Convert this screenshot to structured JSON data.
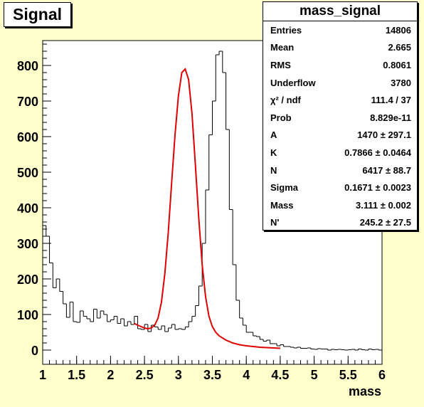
{
  "chart_data": {
    "type": "line",
    "title": "Signal",
    "xlabel": "mass",
    "ylabel": "",
    "xlim": [
      1,
      6
    ],
    "ylim": [
      -40,
      870
    ],
    "x_ticks": [
      "1",
      "1.5",
      "2",
      "2.5",
      "3",
      "3.5",
      "4",
      "4.5",
      "5",
      "5.5",
      "6"
    ],
    "y_ticks": [
      "0",
      "100",
      "200",
      "300",
      "400",
      "500",
      "600",
      "700",
      "800"
    ],
    "histogram": {
      "name": "mass_signal",
      "bin_width": 0.05,
      "x_start": 1.0,
      "values": [
        350,
        320,
        245,
        175,
        200,
        165,
        130,
        92,
        135,
        80,
        78,
        110,
        95,
        88,
        80,
        115,
        90,
        110,
        100,
        80,
        85,
        95,
        75,
        88,
        68,
        80,
        72,
        95,
        60,
        58,
        72,
        52,
        70,
        65,
        58,
        68,
        52,
        62,
        72,
        58,
        60,
        58,
        65,
        80,
        95,
        125,
        180,
        300,
        450,
        605,
        700,
        830,
        840,
        780,
        620,
        395,
        240,
        140,
        90,
        70,
        50,
        50,
        40,
        38,
        30,
        25,
        28,
        18,
        18,
        12,
        15,
        10,
        10,
        8,
        6,
        8,
        5,
        5,
        6,
        3,
        2,
        4,
        3,
        3,
        0,
        2,
        1,
        2,
        1,
        0,
        1,
        2,
        0,
        3,
        1,
        0,
        3,
        1,
        2,
        0
      ]
    },
    "fit": {
      "name": "fit",
      "color": "#e00000",
      "x": [
        2.35,
        2.4,
        2.45,
        2.5,
        2.55,
        2.6,
        2.65,
        2.7,
        2.75,
        2.8,
        2.85,
        2.9,
        2.95,
        3.0,
        3.05,
        3.1,
        3.15,
        3.2,
        3.25,
        3.3,
        3.35,
        3.4,
        3.45,
        3.5,
        3.55,
        3.6,
        3.7,
        3.8,
        3.9,
        4.0,
        4.1,
        4.2,
        4.3,
        4.4,
        4.5
      ],
      "y": [
        75,
        70,
        66,
        62,
        60,
        62,
        70,
        90,
        135,
        215,
        330,
        470,
        605,
        715,
        780,
        790,
        760,
        665,
        520,
        370,
        240,
        150,
        95,
        66,
        50,
        40,
        28,
        20,
        15,
        12,
        10,
        8,
        7,
        6,
        5
      ]
    },
    "grid": false,
    "legend": "none"
  },
  "stats": {
    "title": "mass_signal",
    "rows": [
      {
        "label": "Entries",
        "value": "14806"
      },
      {
        "label": "Mean",
        "value": "2.665"
      },
      {
        "label": "RMS",
        "value": "0.8061"
      },
      {
        "label": "Underflow",
        "value": "3780"
      },
      {
        "label": "χ² / ndf",
        "value": "111.4 / 37"
      },
      {
        "label": "Prob",
        "value": "8.829e-11"
      },
      {
        "label": "A",
        "value": "1470 ± 297.1"
      },
      {
        "label": "K",
        "value": "0.7866 ± 0.0464"
      },
      {
        "label": "N",
        "value": "6417 ± 88.7"
      },
      {
        "label": "Sigma",
        "value": "0.1671 ± 0.0023"
      },
      {
        "label": "Mass",
        "value": "3.111 ± 0.002"
      },
      {
        "label": "N'",
        "value": "245.2 ± 27.5"
      }
    ]
  }
}
